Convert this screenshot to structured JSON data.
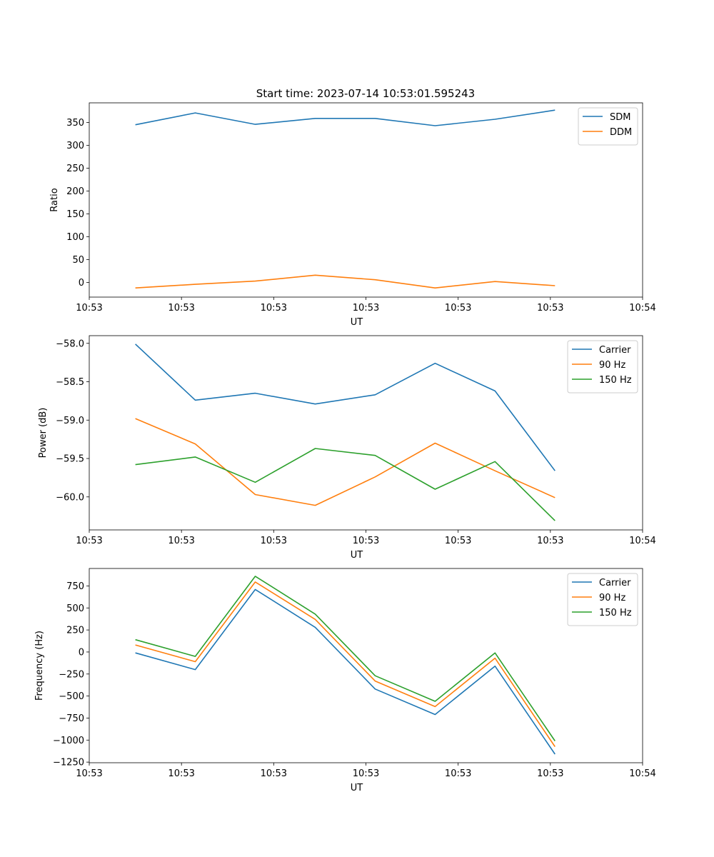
{
  "figure": {
    "title": "Start time: 2023-07-14 10:53:01.595243"
  },
  "chart_data": [
    {
      "type": "line",
      "xlabel": "UT",
      "ylabel": "Ratio",
      "x": [
        0.5,
        1.15,
        1.8,
        2.45,
        3.1,
        3.75,
        4.4,
        5.05
      ],
      "xlim": [
        0,
        6
      ],
      "xticks": [
        0,
        1,
        2,
        3,
        4,
        5,
        6
      ],
      "xtick_labels": [
        "10:53",
        "10:53",
        "10:53",
        "10:53",
        "10:53",
        "10:53",
        "10:54"
      ],
      "ylim": [
        -32,
        393
      ],
      "yticks": [
        0,
        50,
        100,
        150,
        200,
        250,
        300,
        350
      ],
      "ytick_labels": [
        "0",
        "50",
        "100",
        "150",
        "200",
        "250",
        "300",
        "350"
      ],
      "legend_position": "top-right",
      "series": [
        {
          "name": "SDM",
          "color": "#1f77b4",
          "values": [
            345,
            371,
            346,
            359,
            359,
            343,
            357,
            377
          ]
        },
        {
          "name": "DDM",
          "color": "#ff7f0e",
          "values": [
            -12,
            -4,
            3,
            16,
            6,
            -12,
            2,
            -7
          ]
        }
      ]
    },
    {
      "type": "line",
      "xlabel": "UT",
      "ylabel": "Power (dB)",
      "x": [
        0.5,
        1.15,
        1.8,
        2.45,
        3.1,
        3.75,
        4.4,
        5.05
      ],
      "xlim": [
        0,
        6
      ],
      "xticks": [
        0,
        1,
        2,
        3,
        4,
        5,
        6
      ],
      "xtick_labels": [
        "10:53",
        "10:53",
        "10:53",
        "10:53",
        "10:53",
        "10:53",
        "10:54"
      ],
      "ylim": [
        -60.43,
        -57.9
      ],
      "yticks": [
        -60.0,
        -59.5,
        -59.0,
        -58.5,
        -58.0
      ],
      "ytick_labels": [
        "−60.0",
        "−59.5",
        "−59.0",
        "−58.5",
        "−58.0"
      ],
      "legend_position": "top-right",
      "series": [
        {
          "name": "Carrier",
          "color": "#1f77b4",
          "values": [
            -58.01,
            -58.74,
            -58.65,
            -58.79,
            -58.67,
            -58.26,
            -58.62,
            -59.66
          ]
        },
        {
          "name": "90 Hz",
          "color": "#ff7f0e",
          "values": [
            -58.98,
            -59.31,
            -59.97,
            -60.11,
            -59.74,
            -59.3,
            -59.66,
            -60.01
          ]
        },
        {
          "name": "150 Hz",
          "color": "#2ca02c",
          "values": [
            -59.58,
            -59.48,
            -59.81,
            -59.37,
            -59.46,
            -59.9,
            -59.54,
            -60.31
          ]
        }
      ]
    },
    {
      "type": "line",
      "xlabel": "UT",
      "ylabel": "Frequency (Hz)",
      "x": [
        0.5,
        1.15,
        1.8,
        2.45,
        3.1,
        3.75,
        4.4,
        5.05
      ],
      "xlim": [
        0,
        6
      ],
      "xticks": [
        0,
        1,
        2,
        3,
        4,
        5,
        6
      ],
      "xtick_labels": [
        "10:53",
        "10:53",
        "10:53",
        "10:53",
        "10:53",
        "10:53",
        "10:54"
      ],
      "ylim": [
        -1257,
        948
      ],
      "yticks": [
        -1250,
        -1000,
        -750,
        -500,
        -250,
        0,
        250,
        500,
        750
      ],
      "ytick_labels": [
        "−1250",
        "−1000",
        "−750",
        "−500",
        "−250",
        "0",
        "250",
        "500",
        "750"
      ],
      "legend_position": "top-right",
      "series": [
        {
          "name": "Carrier",
          "color": "#1f77b4",
          "values": [
            -10,
            -200,
            710,
            280,
            -420,
            -710,
            -160,
            -1160
          ]
        },
        {
          "name": "90 Hz",
          "color": "#ff7f0e",
          "values": [
            80,
            -110,
            795,
            370,
            -330,
            -620,
            -70,
            -1075
          ]
        },
        {
          "name": "150 Hz",
          "color": "#2ca02c",
          "values": [
            140,
            -50,
            860,
            430,
            -270,
            -560,
            -10,
            -1010
          ]
        }
      ]
    }
  ]
}
